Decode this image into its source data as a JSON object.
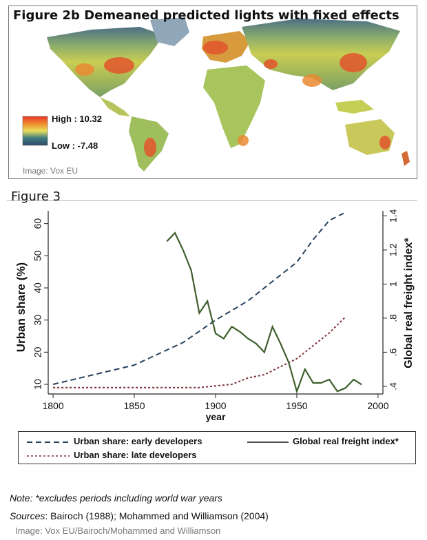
{
  "map_figure": {
    "title": "Figure 2b Demeaned predicted lights with fixed effects",
    "legend_high": "High : 10.32",
    "legend_low": "Low : -7.48",
    "credit": "Image: Vox EU",
    "colors": {
      "ocean": "#ffffff",
      "low": "#3a5a78",
      "mid": "#cfd04a",
      "high": "#e8412a"
    }
  },
  "figure3": {
    "title": "Figure 3",
    "note_label": "Note",
    "note_text": ": *excludes periods including world war years",
    "sources_label": "Sources",
    "sources_text": ": Bairoch (1988); Mohammed and Williamson (2004)",
    "credit": "Image: Vox EU/Bairoch/Mohammed and Williamson"
  },
  "chart_data": {
    "type": "line",
    "xlabel": "year",
    "ylabel": "Urban share (%)",
    "y2label": "Global real freight index*",
    "xlim": [
      1797,
      2003
    ],
    "ylim": [
      7,
      64
    ],
    "y2lim": [
      0.355,
      1.43
    ],
    "x_ticks": [
      1800,
      1850,
      1900,
      1950,
      2000
    ],
    "y_ticks": [
      10,
      20,
      30,
      40,
      50,
      60
    ],
    "y2_ticks": [
      0.4,
      0.6,
      0.8,
      1,
      1.2,
      1.4
    ],
    "y2_tick_labels": [
      ".4",
      ".6",
      ".8",
      "1",
      "1.2",
      "1.4"
    ],
    "legend_position": "bottom",
    "series": [
      {
        "name": "Urban share: early developers",
        "axis": "left",
        "style": "dashed",
        "color": "#26415e",
        "x": [
          1800,
          1850,
          1880,
          1900,
          1920,
          1930,
          1940,
          1950,
          1960,
          1970,
          1980
        ],
        "values": [
          10,
          16,
          23,
          30,
          36,
          40,
          44,
          48,
          55,
          61,
          63.5
        ]
      },
      {
        "name": "Urban share: late developers",
        "axis": "left",
        "style": "dashed",
        "color": "#7d3038",
        "x": [
          1800,
          1850,
          1890,
          1900,
          1910,
          1920,
          1930,
          1940,
          1950,
          1960,
          1970,
          1980
        ],
        "values": [
          9,
          9,
          9,
          9.5,
          10,
          12,
          13,
          15.5,
          18,
          22,
          26,
          31
        ]
      },
      {
        "name": "Global real freight index*",
        "axis": "right",
        "style": "solid",
        "color": "#3e5e2c",
        "x": [
          1870,
          1875,
          1880,
          1885,
          1890,
          1895,
          1900,
          1905,
          1910,
          1915,
          1920,
          1925,
          1930,
          1935,
          1940,
          1945,
          1950,
          1955,
          1960,
          1965,
          1970,
          1975,
          1980,
          1985,
          1990
        ],
        "values": [
          1.25,
          1.3,
          1.2,
          1.08,
          0.83,
          0.9,
          0.71,
          0.68,
          0.75,
          0.72,
          0.68,
          0.65,
          0.6,
          0.75,
          0.65,
          0.54,
          0.37,
          0.5,
          0.42,
          0.42,
          0.44,
          0.37,
          0.39,
          0.44,
          0.41
        ]
      }
    ]
  }
}
